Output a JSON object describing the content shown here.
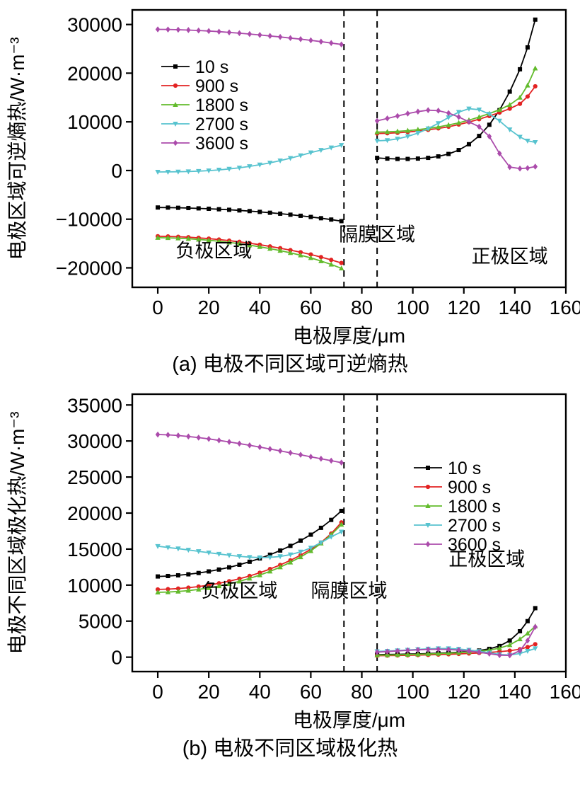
{
  "page": {
    "background": "#ffffff"
  },
  "chart_data": [
    {
      "id": "chart-a",
      "type": "line",
      "title": "",
      "xlabel": "电极厚度/μm",
      "ylabel": "电极区域可逆熵热/W·m⁻³",
      "caption": "(a) 电极不同区域可逆熵热",
      "xlim": [
        -10,
        160
      ],
      "ylim": [
        -24000,
        33000
      ],
      "xticks": [
        0,
        20,
        40,
        60,
        80,
        100,
        120,
        140,
        160
      ],
      "yticks": [
        -20000,
        -10000,
        0,
        10000,
        20000,
        30000
      ],
      "grid": false,
      "dashed_lines_x": [
        73,
        86
      ],
      "legend": {
        "position": "upper-left"
      },
      "annotations": [
        {
          "text": "负极区域",
          "x": 22,
          "y": -17800
        },
        {
          "text": "隔膜区域",
          "x": 86,
          "y": -14500
        },
        {
          "text": "正极区域",
          "x": 138,
          "y": -19000
        }
      ],
      "x_segments": [
        [
          0,
          4,
          8,
          12,
          16,
          20,
          24,
          28,
          32,
          36,
          40,
          44,
          48,
          52,
          56,
          60,
          64,
          68,
          72
        ],
        [
          86,
          90,
          94,
          98,
          102,
          106,
          110,
          114,
          118,
          122,
          126,
          130,
          134,
          138,
          142,
          145,
          148
        ]
      ],
      "series": [
        {
          "name": "10 s",
          "color": "#000000",
          "marker": "square",
          "y_segments": [
            [
              -7600,
              -7620,
              -7660,
              -7710,
              -7780,
              -7860,
              -7960,
              -8070,
              -8200,
              -8340,
              -8500,
              -8680,
              -8870,
              -9080,
              -9300,
              -9540,
              -9800,
              -10080,
              -10400
            ],
            [
              2600,
              2450,
              2380,
              2380,
              2450,
              2600,
              2900,
              3400,
              4200,
              5400,
              7100,
              9400,
              12400,
              16200,
              20800,
              25300,
              31000
            ]
          ]
        },
        {
          "name": "900 s",
          "color": "#e32222",
          "marker": "circle",
          "y_segments": [
            [
              -13500,
              -13540,
              -13610,
              -13710,
              -13840,
              -14000,
              -14190,
              -14410,
              -14660,
              -14940,
              -15250,
              -15590,
              -15960,
              -16360,
              -16790,
              -17250,
              -17790,
              -18370,
              -19000
            ],
            [
              7600,
              7650,
              7750,
              7900,
              8100,
              8350,
              8650,
              9000,
              9450,
              9950,
              10550,
              11200,
              11900,
              12700,
              13700,
              15200,
              17300
            ]
          ]
        },
        {
          "name": "1800 s",
          "color": "#62bb2c",
          "marker": "triangle",
          "y_segments": [
            [
              -13800,
              -13840,
              -13910,
              -14020,
              -14160,
              -14330,
              -14530,
              -14770,
              -15040,
              -15340,
              -15680,
              -16050,
              -16460,
              -16910,
              -17400,
              -17950,
              -18600,
              -19300,
              -20100
            ],
            [
              7900,
              7950,
              8050,
              8200,
              8400,
              8650,
              8950,
              9350,
              9800,
              10350,
              11000,
              11700,
              12500,
              13500,
              15000,
              17500,
              21000
            ]
          ]
        },
        {
          "name": "2700 s",
          "color": "#57c3cf",
          "marker": "triangle-down",
          "y_segments": [
            [
              -300,
              -290,
              -260,
              -210,
              -130,
              -20,
              130,
              320,
              560,
              850,
              1190,
              1580,
              2030,
              2530,
              3080,
              3680,
              4200,
              4700,
              5200
            ],
            [
              6100,
              6200,
              6500,
              7000,
              7700,
              8600,
              9700,
              10900,
              12000,
              12700,
              12500,
              11600,
              10200,
              8400,
              6900,
              6100,
              5800
            ]
          ]
        },
        {
          "name": "3600 s",
          "color": "#ab4bab",
          "marker": "diamond",
          "y_segments": [
            [
              29000,
              28980,
              28930,
              28860,
              28770,
              28660,
              28530,
              28380,
              28220,
              28040,
              27850,
              27650,
              27440,
              27220,
              26990,
              26750,
              26480,
              26200,
              25900
            ],
            [
              10200,
              10700,
              11200,
              11700,
              12100,
              12400,
              12300,
              11800,
              11000,
              10000,
              9000,
              7000,
              3500,
              700,
              400,
              500,
              800
            ]
          ]
        }
      ]
    },
    {
      "id": "chart-b",
      "type": "line",
      "title": "",
      "xlabel": "电极厚度/μm",
      "ylabel": "电极不同区域极化热/W·m⁻³",
      "caption": "(b) 电极不同区域极化热",
      "xlim": [
        -10,
        160
      ],
      "ylim": [
        -2000,
        36500
      ],
      "xticks": [
        0,
        20,
        40,
        60,
        80,
        100,
        120,
        140,
        160
      ],
      "yticks": [
        0,
        5000,
        10000,
        15000,
        20000,
        25000,
        30000,
        35000
      ],
      "grid": false,
      "dashed_lines_x": [
        73,
        86
      ],
      "legend": {
        "position": "right"
      },
      "annotations": [
        {
          "text": "负极区域",
          "x": 32,
          "y": 8300
        },
        {
          "text": "隔膜区域",
          "x": 75,
          "y": 8300
        },
        {
          "text": "正极区域",
          "x": 129,
          "y": 12700
        }
      ],
      "x_segments": [
        [
          0,
          4,
          8,
          12,
          16,
          20,
          24,
          28,
          32,
          36,
          40,
          44,
          48,
          52,
          56,
          60,
          64,
          68,
          72
        ],
        [
          86,
          90,
          94,
          98,
          102,
          106,
          110,
          114,
          118,
          122,
          126,
          130,
          134,
          138,
          142,
          145,
          148
        ]
      ],
      "series": [
        {
          "name": "10 s",
          "color": "#000000",
          "marker": "square",
          "y_segments": [
            [
              11200,
              11260,
              11360,
              11500,
              11680,
              11900,
              12160,
              12470,
              12830,
              13240,
              13700,
              14220,
              14800,
              15450,
              16180,
              17000,
              17950,
              19050,
              20300
            ],
            [
              350,
              380,
              400,
              430,
              460,
              500,
              550,
              610,
              680,
              780,
              920,
              1150,
              1550,
              2300,
              3600,
              5000,
              6800
            ]
          ]
        },
        {
          "name": "900 s",
          "color": "#e32222",
          "marker": "circle",
          "y_segments": [
            [
              9400,
              9440,
              9520,
              9640,
              9800,
              10000,
              10250,
              10540,
              10880,
              11270,
              11720,
              12230,
              12800,
              13440,
              14160,
              14970,
              15900,
              17150,
              18700
            ],
            [
              200,
              220,
              240,
              260,
              290,
              320,
              360,
              400,
              450,
              510,
              580,
              660,
              760,
              900,
              1100,
              1400,
              1800
            ]
          ]
        },
        {
          "name": "1800 s",
          "color": "#62bb2c",
          "marker": "triangle",
          "y_segments": [
            [
              9000,
              9040,
              9120,
              9240,
              9400,
              9610,
              9870,
              10170,
              10520,
              10930,
              11390,
              11910,
              12500,
              13160,
              13900,
              14750,
              15800,
              17000,
              18400
            ],
            [
              280,
              300,
              330,
              360,
              400,
              440,
              490,
              550,
              620,
              710,
              820,
              980,
              1250,
              1700,
              2500,
              3300,
              4300
            ]
          ]
        },
        {
          "name": "2700 s",
          "color": "#57c3cf",
          "marker": "triangle-down",
          "y_segments": [
            [
              15400,
              15230,
              15060,
              14880,
              14690,
              14500,
              14320,
              14150,
              14000,
              13880,
              13820,
              13850,
              13980,
              14230,
              14620,
              15170,
              15900,
              16700,
              17400
            ],
            [
              800,
              850,
              920,
              1000,
              1080,
              1150,
              1200,
              1200,
              1130,
              1000,
              820,
              600,
              380,
              300,
              500,
              850,
              1200
            ]
          ]
        },
        {
          "name": "3600 s",
          "color": "#ab4bab",
          "marker": "diamond",
          "y_segments": [
            [
              30900,
              30850,
              30760,
              30630,
              30470,
              30290,
              30090,
              29870,
              29640,
              29400,
              29150,
              28890,
              28630,
              28360,
              28090,
              27810,
              27540,
              27270,
              27000
            ],
            [
              700,
              780,
              870,
              950,
              1020,
              1070,
              1090,
              1060,
              980,
              850,
              680,
              480,
              280,
              250,
              900,
              2300,
              4200
            ]
          ]
        }
      ]
    }
  ]
}
